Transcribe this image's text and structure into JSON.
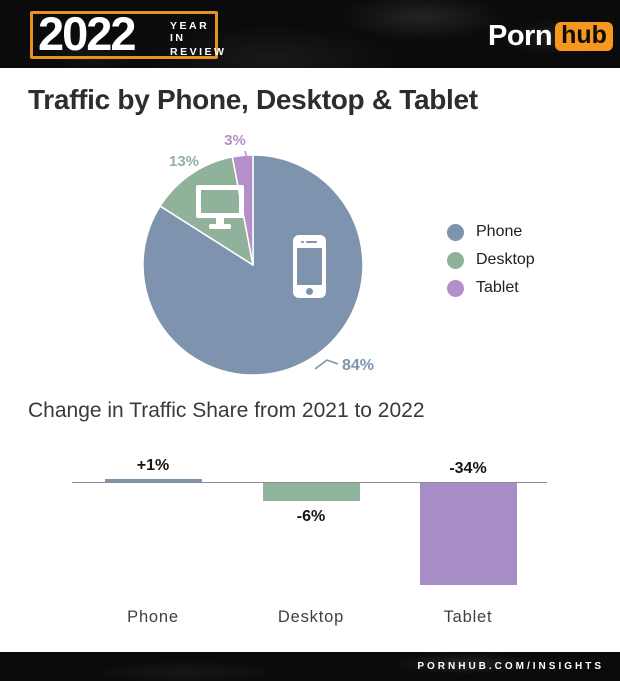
{
  "header": {
    "year": "2022",
    "tagline_line1": "YEAR IN",
    "tagline_line2": "REVIEW",
    "logo": {
      "part1": "Porn",
      "part2": "hub"
    },
    "accent_orange": "#f7971d"
  },
  "main": {
    "title": "Traffic by Phone, Desktop & Tablet"
  },
  "chart_data": [
    {
      "type": "pie",
      "title": "Traffic by Phone, Desktop & Tablet",
      "categories": [
        "Phone",
        "Desktop",
        "Tablet"
      ],
      "values": [
        84,
        13,
        3
      ],
      "labels": [
        "84%",
        "13%",
        "3%"
      ],
      "colors": [
        "#7d93ae",
        "#91b29a",
        "#b48fc9"
      ],
      "start_angle_deg": -90,
      "direction": "clockwise",
      "legend_position": "right",
      "slice_icons": [
        "smartphone-icon",
        "monitor-icon",
        null
      ]
    },
    {
      "type": "bar",
      "title": "Change in Traffic Share from 2021 to 2022",
      "categories": [
        "Phone",
        "Desktop",
        "Tablet"
      ],
      "values": [
        1,
        -6,
        -34
      ],
      "labels": [
        "+1%",
        "-6%",
        "-34%"
      ],
      "colors": [
        "#7e95ae",
        "#90b59d",
        "#a78dc5"
      ],
      "xlabel": "",
      "ylabel": "",
      "ylim": [
        -40,
        5
      ],
      "grid": false,
      "zero_line": true,
      "label_positions": [
        "above-bar",
        "below-bar",
        "above-axis"
      ]
    }
  ],
  "footer": {
    "site": "PORNHUB.COM/INSIGHTS"
  }
}
